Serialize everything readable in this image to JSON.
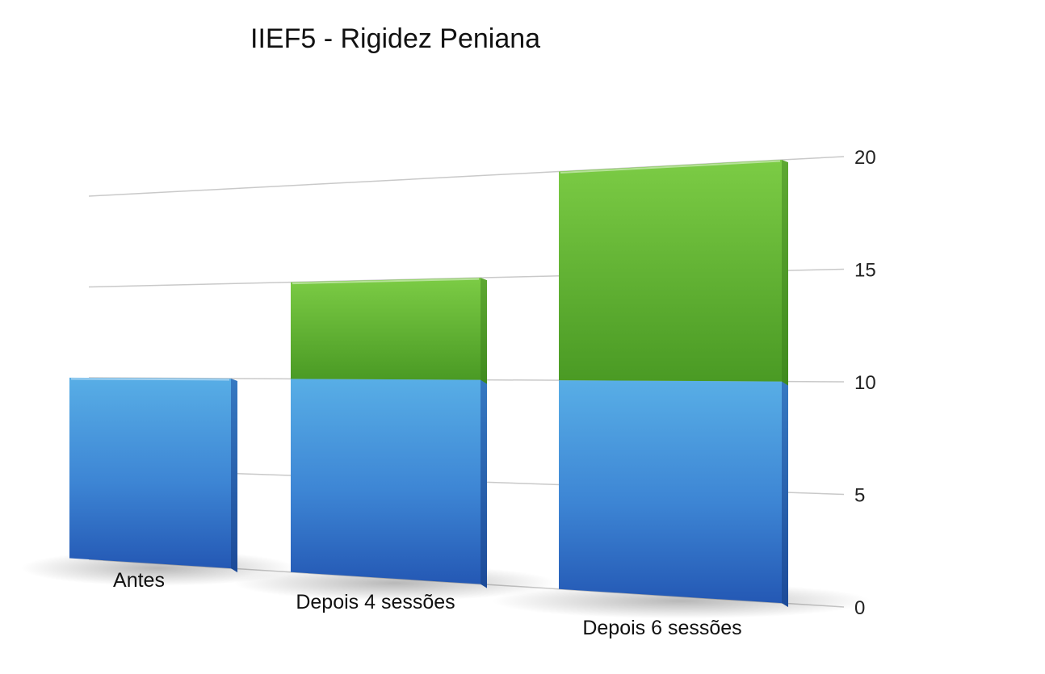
{
  "chart_data": {
    "type": "bar",
    "stacked": true,
    "style": "3d",
    "title": "IIEF5 - Rigidez Peniana",
    "xlabel": "",
    "ylabel": "",
    "ylim": [
      0,
      20
    ],
    "yticks": [
      "0",
      "5",
      "10",
      "15",
      "20"
    ],
    "y_axis_side": "right",
    "grid": true,
    "legend": "none",
    "categories": [
      "Antes",
      "Depois 4 sessões",
      "Depois 6 sessões"
    ],
    "series": [
      {
        "values": [
          10,
          10,
          10
        ],
        "color": "#3b82d0"
      },
      {
        "values": [
          0,
          5,
          10
        ],
        "color": "#5db83a"
      }
    ]
  }
}
